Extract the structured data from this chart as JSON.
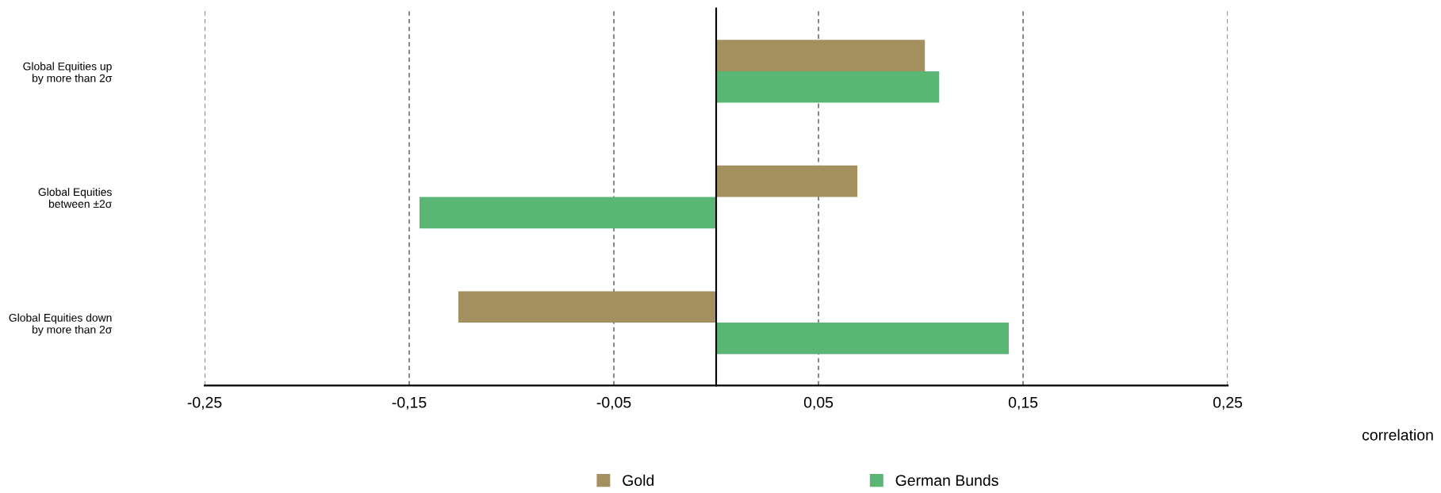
{
  "chart_data": {
    "type": "bar",
    "orientation": "horizontal",
    "categories": [
      "Global Equities up\nby more than 2σ",
      "Global Equities\nbetween ±2σ",
      "Global Equities down\nby more than 2σ"
    ],
    "series": [
      {
        "name": "Gold",
        "color": "#a48f5e",
        "values": [
          0.102,
          0.069,
          -0.126
        ]
      },
      {
        "name": "German Bunds",
        "color": "#59b674",
        "values": [
          0.109,
          -0.145,
          0.143
        ]
      }
    ],
    "xlim": [
      -0.25,
      0.25
    ],
    "xticks": [
      {
        "value": -0.25,
        "label": "-0,25"
      },
      {
        "value": -0.15,
        "label": "-0,15"
      },
      {
        "value": -0.05,
        "label": "-0,05"
      },
      {
        "value": 0.05,
        "label": "0,05"
      },
      {
        "value": 0.15,
        "label": "0,15"
      },
      {
        "value": 0.25,
        "label": "0,25"
      }
    ],
    "annotations": [
      "correlation"
    ],
    "grid": "x",
    "legend": "bottom"
  }
}
